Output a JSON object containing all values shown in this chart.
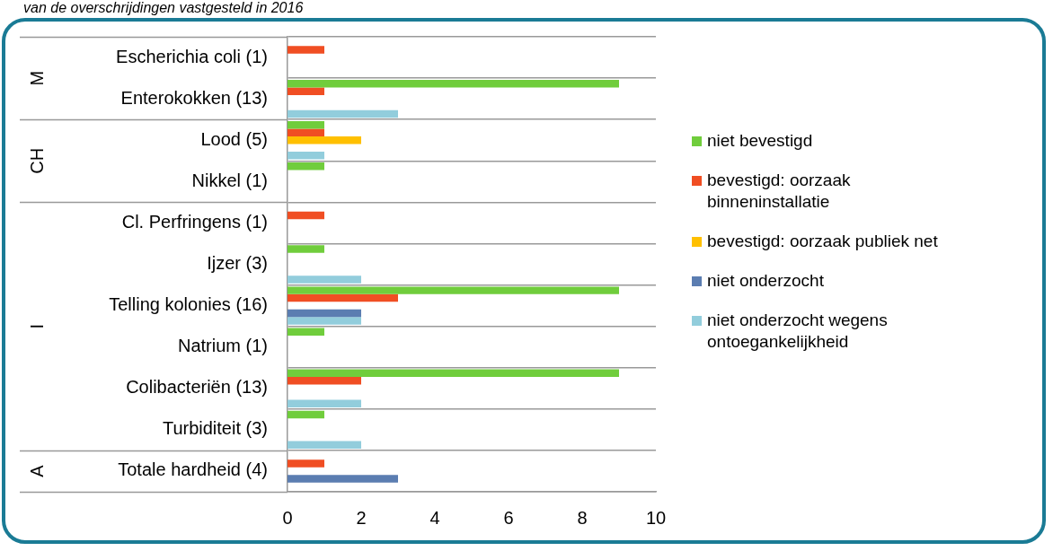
{
  "chart_data": {
    "type": "bar",
    "orientation": "horizontal",
    "title": "van de overschrijdingen vastgesteld in 2016",
    "categories": [
      "Escherichia coli (1)",
      "Enterokokken (13)",
      "Lood (5)",
      "Nikkel (1)",
      "Cl. Perfringens (1)",
      "Ijzer (3)",
      "Telling kolonies (16)",
      "Natrium (1)",
      "Colibacteriën (13)",
      "Turbiditeit (3)",
      "Totale hardheid (4)"
    ],
    "series": [
      {
        "name": "niet bevestigd",
        "color": "#70cd3c",
        "values": [
          null,
          9,
          1,
          1,
          null,
          1,
          9,
          1,
          9,
          1,
          null
        ]
      },
      {
        "name": "bevestigd: oorzaak binneninstallatie",
        "color": "#f04e23",
        "values": [
          1,
          1,
          1,
          null,
          1,
          null,
          3,
          null,
          2,
          null,
          1
        ]
      },
      {
        "name": "bevestigd: oorzaak publiek net",
        "color": "#ffc000",
        "values": [
          null,
          null,
          2,
          null,
          null,
          null,
          null,
          null,
          null,
          null,
          null
        ]
      },
      {
        "name": "niet onderzocht",
        "color": "#5b7db1",
        "values": [
          null,
          null,
          null,
          null,
          null,
          null,
          2,
          null,
          null,
          null,
          3
        ]
      },
      {
        "name": "niet onderzocht wegens ontoegankelijkheid",
        "color": "#92cddc",
        "values": [
          null,
          3,
          1,
          null,
          null,
          2,
          2,
          null,
          2,
          2,
          null
        ]
      }
    ],
    "annotations": [
      "M",
      "CH",
      "I",
      "A"
    ],
    "xlim": [
      0,
      10
    ],
    "xticks": [
      0,
      2,
      4,
      6,
      8,
      10
    ],
    "grid": "y",
    "legend": "right"
  }
}
